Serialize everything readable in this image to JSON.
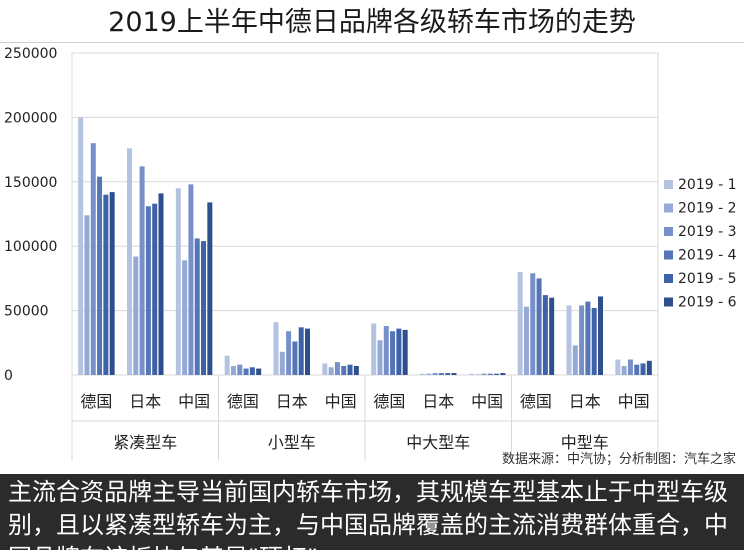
{
  "title": "2019上半年中德日品牌各级轿车市场的走势",
  "source_note": "数据来源：中汽协；分析制图：汽车之家",
  "caption": "主流合资品牌主导当前国内轿车市场，其规模车型基本止于中型车级别，且以紧凑型轿车为主，与中国品牌覆盖的主流消费群体重合，中国品牌在该板块与其是\"硬杠\"",
  "colors": {
    "series": [
      "#b4c3e0",
      "#94a9d6",
      "#7890ca",
      "#5576b6",
      "#3e62a8",
      "#2d4f8e"
    ],
    "grid": "#d9d9d9",
    "axis_text": "#222222"
  },
  "chart_data": {
    "type": "bar",
    "title": "2019上半年中德日品牌各级轿车市场的走势",
    "xlabel": "",
    "ylabel": "",
    "ylim": [
      0,
      250000
    ],
    "yticks": [
      0,
      50000,
      100000,
      150000,
      200000,
      250000
    ],
    "y_tick_labels": [
      "0",
      "50000",
      "100000",
      "150000",
      "200000",
      "250000"
    ],
    "grid": true,
    "legend_position": "right",
    "groups": [
      {
        "label": "紧凑型车",
        "categories": [
          "德国",
          "日本",
          "中国"
        ]
      },
      {
        "label": "小型车",
        "categories": [
          "德国",
          "日本",
          "中国"
        ]
      },
      {
        "label": "中大型车",
        "categories": [
          "德国",
          "日本",
          "中国"
        ]
      },
      {
        "label": "中型车",
        "categories": [
          "德国",
          "日本",
          "中国"
        ]
      }
    ],
    "series": [
      {
        "name": "2019 - 1",
        "values": [
          200000,
          176000,
          145000,
          15000,
          41000,
          9000,
          40000,
          1000,
          1000,
          80000,
          54000,
          12000
        ]
      },
      {
        "name": "2019 - 2",
        "values": [
          124000,
          92000,
          89000,
          7000,
          18000,
          6000,
          27000,
          1000,
          500,
          53000,
          23000,
          7000
        ]
      },
      {
        "name": "2019 - 3",
        "values": [
          180000,
          162000,
          148000,
          8000,
          34000,
          10000,
          38000,
          1500,
          1000,
          79000,
          54000,
          12000
        ]
      },
      {
        "name": "2019 - 4",
        "values": [
          154000,
          131000,
          106000,
          5000,
          26000,
          7000,
          34000,
          1500,
          1000,
          75000,
          57000,
          8000
        ]
      },
      {
        "name": "2019 - 5",
        "values": [
          140000,
          133000,
          104000,
          6000,
          37000,
          8000,
          36000,
          1500,
          1000,
          62000,
          52000,
          9000
        ]
      },
      {
        "name": "2019 - 6",
        "values": [
          142000,
          141000,
          134000,
          5000,
          36000,
          7000,
          35000,
          1500,
          1500,
          60000,
          61000,
          11000
        ]
      }
    ]
  }
}
